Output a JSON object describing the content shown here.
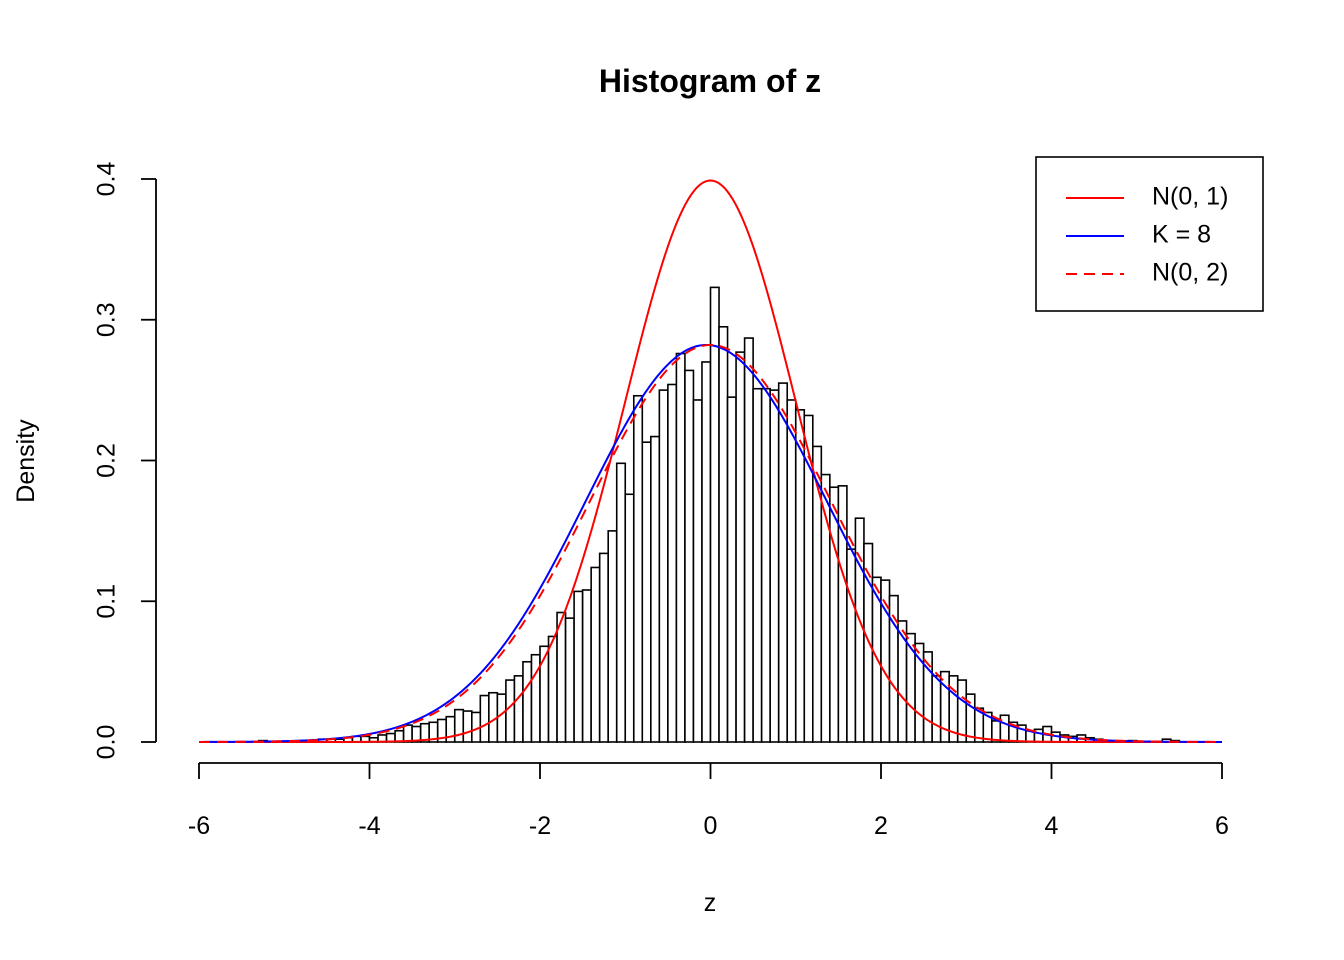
{
  "chart_data": {
    "type": "bar",
    "title": "Histogram of z",
    "xlabel": "z",
    "ylabel": "Density",
    "xlim": [
      -6,
      6
    ],
    "ylim": [
      0,
      0.4
    ],
    "x_ticks": [
      -6,
      -4,
      -2,
      0,
      2,
      4,
      6
    ],
    "x_tick_labels": [
      "-6",
      "-4",
      "-2",
      "0",
      "2",
      "4",
      "6"
    ],
    "y_ticks": [
      0,
      0.1,
      0.2,
      0.3,
      0.4
    ],
    "y_tick_labels": [
      "0.0",
      "0.1",
      "0.2",
      "0.3",
      "0.4"
    ],
    "bin_width": 0.1,
    "bins_start": -5.3,
    "histogram_density": [
      0.001,
      0.0,
      0.0,
      0.0,
      0.0,
      0.001,
      0.001,
      0.002,
      0.002,
      0.002,
      0.003,
      0.004,
      0.004,
      0.003,
      0.005,
      0.006,
      0.008,
      0.012,
      0.011,
      0.013,
      0.014,
      0.016,
      0.018,
      0.023,
      0.022,
      0.021,
      0.033,
      0.035,
      0.034,
      0.044,
      0.047,
      0.057,
      0.062,
      0.068,
      0.075,
      0.092,
      0.088,
      0.107,
      0.108,
      0.124,
      0.134,
      0.15,
      0.198,
      0.176,
      0.246,
      0.213,
      0.217,
      0.25,
      0.254,
      0.276,
      0.264,
      0.243,
      0.27,
      0.323,
      0.295,
      0.245,
      0.277,
      0.287,
      0.251,
      0.251,
      0.25,
      0.255,
      0.243,
      0.236,
      0.232,
      0.21,
      0.19,
      0.181,
      0.182,
      0.137,
      0.159,
      0.141,
      0.117,
      0.115,
      0.104,
      0.086,
      0.077,
      0.07,
      0.064,
      0.047,
      0.05,
      0.047,
      0.044,
      0.034,
      0.024,
      0.021,
      0.015,
      0.019,
      0.014,
      0.012,
      0.008,
      0.009,
      0.011,
      0.007,
      0.005,
      0.004,
      0.005,
      0.003,
      0.002,
      0.001,
      0.0,
      0.0,
      0.001,
      0.0,
      0.0,
      0.0,
      0.002,
      0.001
    ],
    "series": [
      {
        "name": "N(0, 1)",
        "kind": "normal-density",
        "mean": 0,
        "variance": 1,
        "color": "#ff0000",
        "dash": "solid"
      },
      {
        "name": "K = 8",
        "kind": "density-curve",
        "mean": -0.05,
        "variance": 2.0,
        "color": "#0000ff",
        "dash": "solid"
      },
      {
        "name": "N(0, 2)",
        "kind": "normal-density",
        "mean": 0,
        "variance": 2,
        "color": "#ff0000",
        "dash": "dashed"
      }
    ],
    "legend_position": "top-right",
    "grid": false
  }
}
